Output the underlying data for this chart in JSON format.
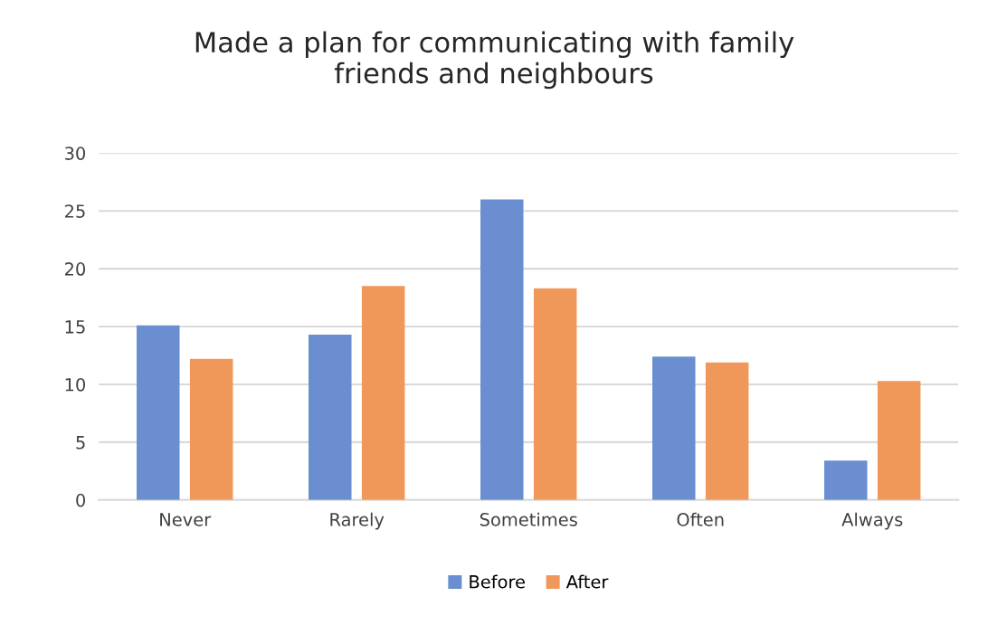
{
  "chart_data": {
    "type": "bar",
    "title": "Made a plan for communicating with family\nfriends and neighbours",
    "categories": [
      "Never",
      "Rarely",
      "Sometimes",
      "Often",
      "Always"
    ],
    "series": [
      {
        "name": "Before",
        "color": "#6a8ecf",
        "values": [
          15.1,
          14.3,
          26.0,
          12.4,
          3.4
        ]
      },
      {
        "name": "After",
        "color": "#f0975a",
        "values": [
          12.2,
          18.5,
          18.3,
          11.9,
          10.3
        ]
      }
    ],
    "ylim": [
      0,
      30
    ],
    "yticks": [
      0,
      5,
      10,
      15,
      20,
      25,
      30
    ],
    "grid": "y",
    "legend": "bottom"
  }
}
